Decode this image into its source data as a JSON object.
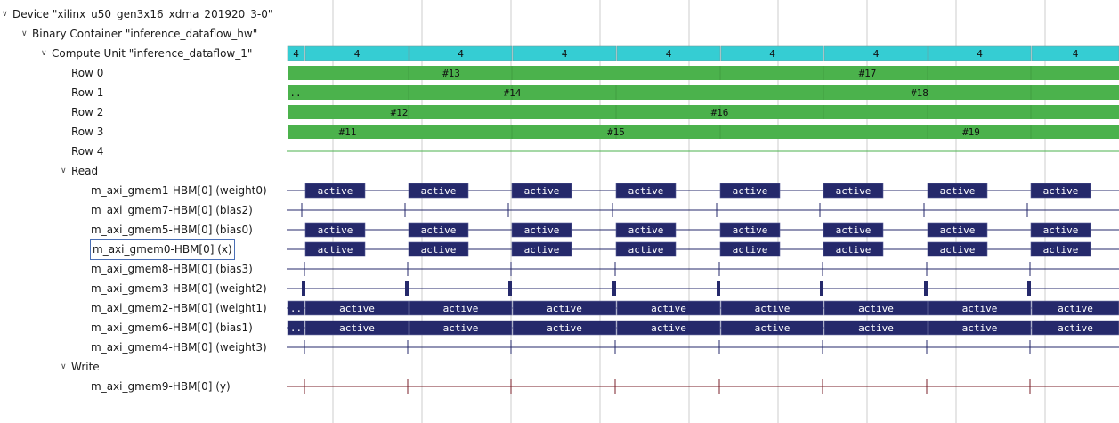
{
  "tree": [
    {
      "id": "device",
      "label": "Device \"xilinx_u50_gen3x16_xdma_201920_3-0\"",
      "chevron": true
    },
    {
      "id": "binary",
      "label": "Binary Container \"inference_dataflow_hw\"",
      "chevron": true
    },
    {
      "id": "cu",
      "label": "Compute Unit \"inference_dataflow_1\"",
      "chevron": true
    },
    {
      "id": "row0",
      "label": "Row 0",
      "chevron": false
    },
    {
      "id": "row1",
      "label": "Row 1",
      "chevron": false
    },
    {
      "id": "row2",
      "label": "Row 2",
      "chevron": false
    },
    {
      "id": "row3",
      "label": "Row 3",
      "chevron": false
    },
    {
      "id": "row4",
      "label": "Row 4",
      "chevron": false
    },
    {
      "id": "read",
      "label": "Read",
      "chevron": true
    },
    {
      "id": "gmem1",
      "label": "m_axi_gmem1-HBM[0] (weight0)",
      "chevron": false
    },
    {
      "id": "gmem7",
      "label": "m_axi_gmem7-HBM[0] (bias2)",
      "chevron": false
    },
    {
      "id": "gmem5",
      "label": "m_axi_gmem5-HBM[0] (bias0)",
      "chevron": false
    },
    {
      "id": "gmem0",
      "label": "m_axi_gmem0-HBM[0] (x)",
      "chevron": false,
      "selected": true
    },
    {
      "id": "gmem8",
      "label": "m_axi_gmem8-HBM[0] (bias3)",
      "chevron": false
    },
    {
      "id": "gmem3",
      "label": "m_axi_gmem3-HBM[0] (weight2)",
      "chevron": false
    },
    {
      "id": "gmem2",
      "label": "m_axi_gmem2-HBM[0] (weight1)",
      "chevron": false
    },
    {
      "id": "gmem6",
      "label": "m_axi_gmem6-HBM[0] (bias1)",
      "chevron": false
    },
    {
      "id": "gmem4",
      "label": "m_axi_gmem4-HBM[0] (weight3)",
      "chevron": false
    },
    {
      "id": "write",
      "label": "Write",
      "chevron": true
    },
    {
      "id": "gmem9",
      "label": "m_axi_gmem9-HBM[0] (y)",
      "chevron": false
    }
  ],
  "colors": {
    "cu": "#35cdd3",
    "row": "#4bb24c",
    "read": "#25296b",
    "write": "#7a1f28",
    "grid": "#cccccc",
    "selection": "#4a6fb5"
  },
  "timeline": {
    "cu_bar": {
      "segments": [
        {
          "label": "4"
        },
        {
          "label": "4"
        },
        {
          "label": "4"
        },
        {
          "label": "4"
        },
        {
          "label": "4"
        },
        {
          "label": "4"
        },
        {
          "label": "4"
        },
        {
          "label": "4"
        },
        {
          "label": "4"
        }
      ]
    },
    "rows": [
      {
        "bars": [
          {
            "label": "#13"
          },
          {
            "label": "#17"
          }
        ]
      },
      {
        "bars": [
          {
            "label": ".."
          },
          {
            "label": "#14"
          },
          {
            "label": "#18"
          }
        ]
      },
      {
        "bars": [
          {
            "label": "#12"
          },
          {
            "label": "#16"
          }
        ]
      },
      {
        "bars": [
          {
            "label": "#11"
          },
          {
            "label": "#15"
          },
          {
            "label": "#19"
          }
        ]
      },
      {
        "bars": []
      }
    ],
    "active_label": "active",
    "truncated_label": ".."
  }
}
